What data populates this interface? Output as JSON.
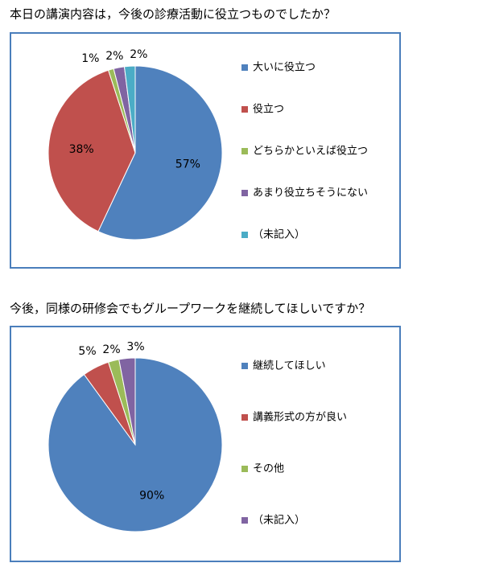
{
  "chart_data": [
    {
      "type": "pie",
      "title": "本日の講演内容は，今後の診療活動に役立つものでしたか？",
      "categories": [
        "大いに役立つ",
        "役立つ",
        "どちらかといえば役立つ",
        "あまり役立ちそうにない",
        "（未記入）"
      ],
      "values": [
        57,
        38,
        1,
        2,
        2
      ],
      "value_labels": [
        "57%",
        "38%",
        "1%",
        "2%",
        "2%"
      ],
      "colors": [
        "#4f81bd",
        "#c0504d",
        "#9bbb59",
        "#8064a2",
        "#4bacc6"
      ]
    },
    {
      "type": "pie",
      "title": "今後，同様の研修会でもグループワークを継続してほしいですか？",
      "categories": [
        "継続してほしい",
        "講義形式の方が良い",
        "その他",
        "（未記入）"
      ],
      "values": [
        90,
        5,
        2,
        3
      ],
      "value_labels": [
        "90%",
        "5%",
        "2%",
        "3%"
      ],
      "colors": [
        "#4f81bd",
        "#c0504d",
        "#9bbb59",
        "#8064a2"
      ]
    }
  ]
}
